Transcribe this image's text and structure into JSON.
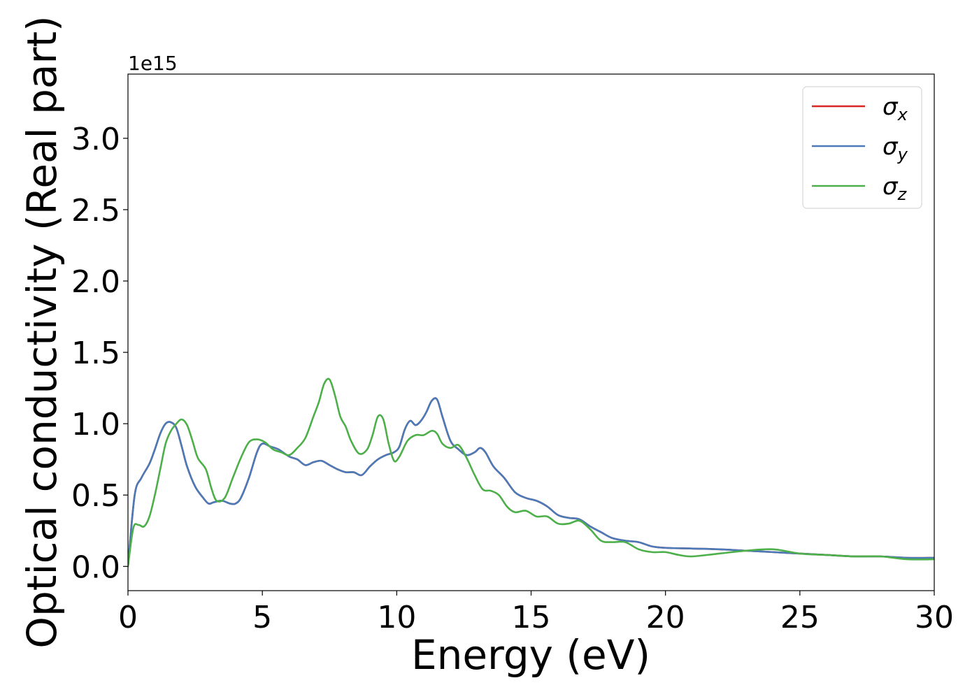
{
  "chart_data": {
    "type": "line",
    "title": "",
    "xlabel": "Energy (eV)",
    "ylabel": "Optical conductivity (Real part)",
    "offset_text": "1e15",
    "xlim": [
      0,
      30
    ],
    "ylim": [
      -0.17,
      3.45
    ],
    "xticks": [
      0,
      5,
      10,
      15,
      20,
      25,
      30
    ],
    "xtick_labels": [
      "0",
      "5",
      "10",
      "15",
      "20",
      "25",
      "30"
    ],
    "yticks": [
      0.0,
      0.5,
      1.0,
      1.5,
      2.0,
      2.5,
      3.0
    ],
    "ytick_labels": [
      "0.0",
      "0.5",
      "1.0",
      "1.5",
      "2.0",
      "2.5",
      "3.0"
    ],
    "grid": false,
    "legend_position": "top-right",
    "series": [
      {
        "name": "σx",
        "label_base": "σ",
        "label_sub": "x",
        "color": "#d62728",
        "x": [
          0,
          0.25,
          0.5,
          0.8,
          1.0,
          1.2,
          1.4,
          1.6,
          1.8,
          2.0,
          2.2,
          2.5,
          2.8,
          3.0,
          3.2,
          3.5,
          3.8,
          4.0,
          4.2,
          4.5,
          4.8,
          5.0,
          5.3,
          5.6,
          6.0,
          6.3,
          6.6,
          6.9,
          7.2,
          7.5,
          7.8,
          8.1,
          8.4,
          8.7,
          9.0,
          9.3,
          9.6,
          9.9,
          10.1,
          10.3,
          10.5,
          10.7,
          10.9,
          11.1,
          11.3,
          11.5,
          11.7,
          12.0,
          12.3,
          12.6,
          12.9,
          13.1,
          13.3,
          13.6,
          14.0,
          14.4,
          14.8,
          15.2,
          15.6,
          16.0,
          16.4,
          16.8,
          17.2,
          17.6,
          18.0,
          18.5,
          19.0,
          19.5,
          20.0,
          21.0,
          22.0,
          23.0,
          24.0,
          25.0,
          26.0,
          27.0,
          28.0,
          29.0,
          30.0
        ],
        "y": [
          0.0,
          0.5,
          0.62,
          0.72,
          0.82,
          0.93,
          1.0,
          1.01,
          0.97,
          0.84,
          0.7,
          0.56,
          0.48,
          0.44,
          0.45,
          0.46,
          0.44,
          0.44,
          0.48,
          0.62,
          0.8,
          0.86,
          0.84,
          0.82,
          0.77,
          0.75,
          0.71,
          0.73,
          0.74,
          0.71,
          0.68,
          0.66,
          0.66,
          0.64,
          0.7,
          0.75,
          0.78,
          0.8,
          0.84,
          0.96,
          1.02,
          0.99,
          1.02,
          1.08,
          1.16,
          1.17,
          1.05,
          0.88,
          0.82,
          0.78,
          0.8,
          0.83,
          0.8,
          0.7,
          0.62,
          0.52,
          0.48,
          0.46,
          0.42,
          0.36,
          0.34,
          0.33,
          0.28,
          0.24,
          0.2,
          0.18,
          0.17,
          0.14,
          0.13,
          0.125,
          0.12,
          0.11,
          0.1,
          0.09,
          0.08,
          0.07,
          0.07,
          0.06,
          0.06
        ]
      },
      {
        "name": "σy",
        "label_base": "σ",
        "label_sub": "y",
        "color": "#4a7ab8",
        "x": [
          0,
          0.25,
          0.5,
          0.8,
          1.0,
          1.2,
          1.4,
          1.6,
          1.8,
          2.0,
          2.2,
          2.5,
          2.8,
          3.0,
          3.2,
          3.5,
          3.8,
          4.0,
          4.2,
          4.5,
          4.8,
          5.0,
          5.3,
          5.6,
          6.0,
          6.3,
          6.6,
          6.9,
          7.2,
          7.5,
          7.8,
          8.1,
          8.4,
          8.7,
          9.0,
          9.3,
          9.6,
          9.9,
          10.1,
          10.3,
          10.5,
          10.7,
          10.9,
          11.1,
          11.3,
          11.5,
          11.7,
          12.0,
          12.3,
          12.6,
          12.9,
          13.1,
          13.3,
          13.6,
          14.0,
          14.4,
          14.8,
          15.2,
          15.6,
          16.0,
          16.4,
          16.8,
          17.2,
          17.6,
          18.0,
          18.5,
          19.0,
          19.5,
          20.0,
          21.0,
          22.0,
          23.0,
          24.0,
          25.0,
          26.0,
          27.0,
          28.0,
          29.0,
          30.0
        ],
        "y": [
          0.0,
          0.5,
          0.62,
          0.72,
          0.82,
          0.93,
          1.0,
          1.01,
          0.97,
          0.84,
          0.7,
          0.56,
          0.48,
          0.44,
          0.45,
          0.46,
          0.44,
          0.44,
          0.48,
          0.62,
          0.8,
          0.86,
          0.84,
          0.82,
          0.77,
          0.75,
          0.71,
          0.73,
          0.74,
          0.71,
          0.68,
          0.66,
          0.66,
          0.64,
          0.7,
          0.75,
          0.78,
          0.8,
          0.84,
          0.96,
          1.02,
          0.99,
          1.02,
          1.08,
          1.16,
          1.17,
          1.05,
          0.88,
          0.82,
          0.78,
          0.8,
          0.83,
          0.8,
          0.7,
          0.62,
          0.52,
          0.48,
          0.46,
          0.42,
          0.36,
          0.34,
          0.33,
          0.28,
          0.24,
          0.2,
          0.18,
          0.17,
          0.14,
          0.13,
          0.125,
          0.12,
          0.11,
          0.1,
          0.09,
          0.08,
          0.07,
          0.07,
          0.06,
          0.06
        ]
      },
      {
        "name": "σz",
        "label_base": "σ",
        "label_sub": "z",
        "color": "#4daf4a",
        "x": [
          0,
          0.2,
          0.4,
          0.6,
          0.8,
          1.0,
          1.2,
          1.4,
          1.6,
          1.8,
          2.0,
          2.2,
          2.4,
          2.6,
          2.9,
          3.1,
          3.3,
          3.6,
          3.9,
          4.2,
          4.5,
          4.8,
          5.1,
          5.4,
          5.7,
          6.0,
          6.3,
          6.6,
          6.9,
          7.1,
          7.3,
          7.5,
          7.7,
          7.9,
          8.1,
          8.3,
          8.6,
          8.9,
          9.1,
          9.3,
          9.5,
          9.7,
          9.9,
          10.1,
          10.4,
          10.7,
          11.0,
          11.3,
          11.5,
          11.7,
          12.0,
          12.3,
          12.6,
          12.9,
          13.2,
          13.5,
          13.8,
          14.1,
          14.4,
          14.8,
          15.2,
          15.6,
          16.0,
          16.4,
          16.8,
          17.2,
          17.6,
          18.0,
          18.5,
          19.0,
          19.5,
          20.0,
          20.5,
          21.0,
          22.0,
          23.0,
          24.0,
          25.0,
          26.0,
          27.0,
          28.0,
          29.0,
          30.0
        ],
        "y": [
          0.0,
          0.27,
          0.29,
          0.28,
          0.35,
          0.5,
          0.68,
          0.86,
          0.95,
          1.0,
          1.03,
          0.99,
          0.88,
          0.76,
          0.68,
          0.55,
          0.46,
          0.48,
          0.62,
          0.76,
          0.87,
          0.89,
          0.87,
          0.82,
          0.8,
          0.78,
          0.83,
          0.9,
          1.05,
          1.15,
          1.28,
          1.31,
          1.2,
          1.05,
          0.98,
          0.88,
          0.79,
          0.82,
          0.92,
          1.05,
          1.03,
          0.86,
          0.74,
          0.77,
          0.88,
          0.92,
          0.92,
          0.95,
          0.93,
          0.86,
          0.83,
          0.85,
          0.76,
          0.64,
          0.54,
          0.53,
          0.5,
          0.42,
          0.38,
          0.39,
          0.35,
          0.35,
          0.3,
          0.3,
          0.32,
          0.26,
          0.18,
          0.17,
          0.17,
          0.12,
          0.1,
          0.1,
          0.08,
          0.07,
          0.09,
          0.11,
          0.12,
          0.09,
          0.08,
          0.07,
          0.07,
          0.05,
          0.05
        ]
      }
    ]
  }
}
